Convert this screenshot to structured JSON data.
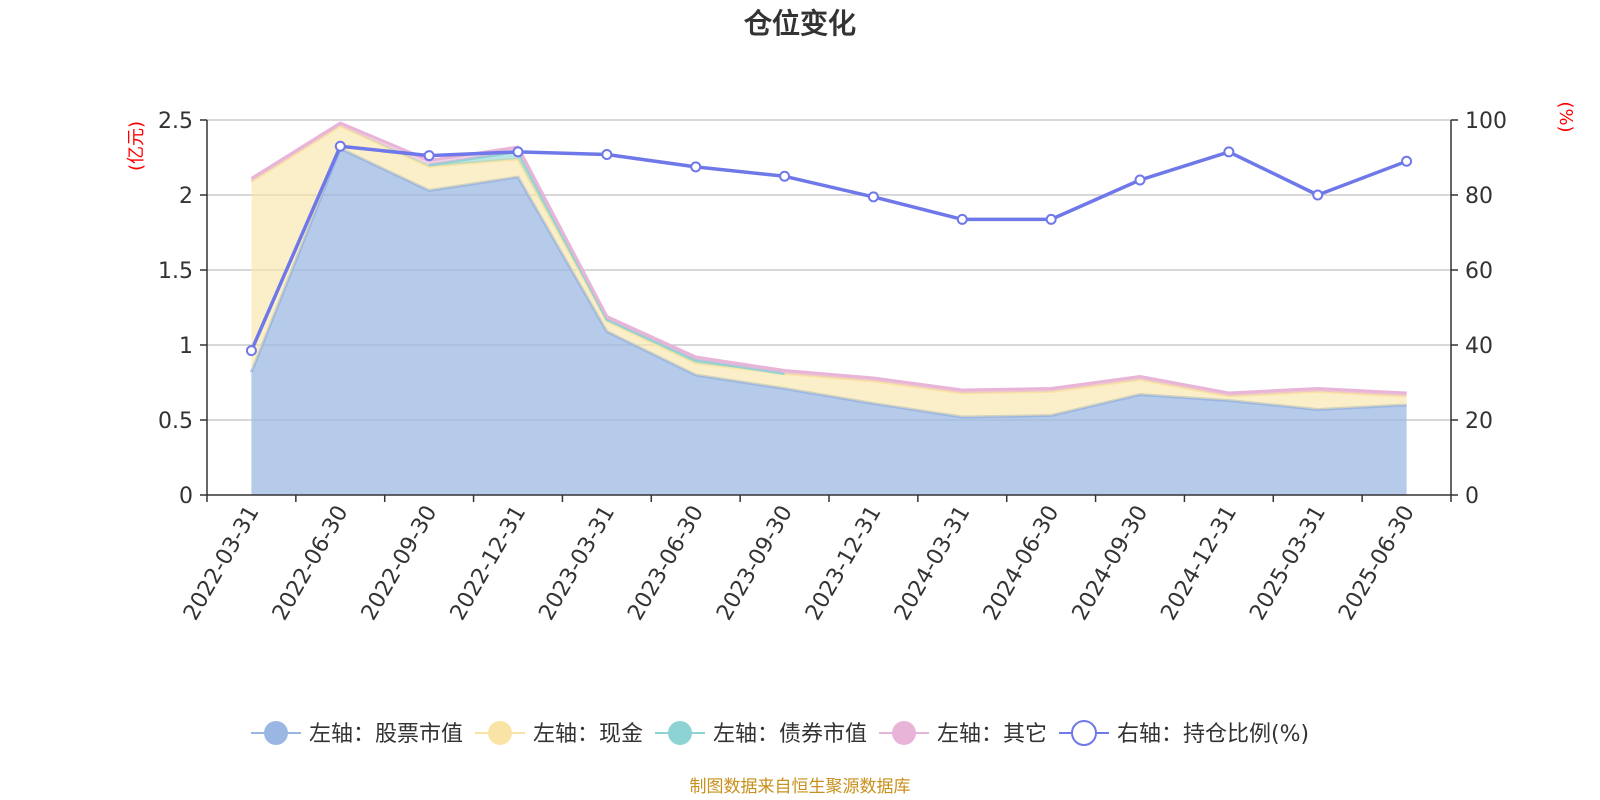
{
  "chart_data": {
    "type": "area",
    "title": "仓位变化",
    "left_unit": "(亿元)",
    "right_unit": "(%)",
    "categories": [
      "2022-03-31",
      "2022-06-30",
      "2022-09-30",
      "2022-12-31",
      "2023-03-31",
      "2023-06-30",
      "2023-09-30",
      "2023-12-31",
      "2024-03-31",
      "2024-06-30",
      "2024-09-30",
      "2024-12-31",
      "2025-03-31",
      "2025-06-30"
    ],
    "left_axis": {
      "min": 0,
      "max": 2.5,
      "ticks": [
        "0",
        "0.5",
        "1",
        "1.5",
        "2",
        "2.5"
      ]
    },
    "right_axis": {
      "min": 0,
      "max": 100,
      "ticks": [
        "0",
        "20",
        "40",
        "60",
        "80",
        "100"
      ]
    },
    "grid": true,
    "stacked": true,
    "legend_position": "bottom",
    "series": [
      {
        "name": "左轴：股票市值",
        "axis": "left",
        "kind": "area",
        "color": "#9ab6e2",
        "values": [
          0.82,
          2.31,
          2.03,
          2.12,
          1.09,
          0.8,
          0.71,
          0.61,
          0.52,
          0.53,
          0.67,
          0.63,
          0.57,
          0.6
        ]
      },
      {
        "name": "左轴：现金",
        "axis": "left",
        "kind": "area",
        "color": "#f9e4a6",
        "values": [
          1.27,
          0.15,
          0.16,
          0.12,
          0.07,
          0.08,
          0.1,
          0.15,
          0.16,
          0.16,
          0.1,
          0.03,
          0.12,
          0.06
        ]
      },
      {
        "name": "左轴：债券市值",
        "axis": "left",
        "kind": "area",
        "color": "#8ed3d3",
        "values": [
          0,
          0,
          0.01,
          0.05,
          0.01,
          0.02,
          0,
          0,
          0,
          0,
          0,
          0,
          0,
          0
        ]
      },
      {
        "name": "左轴：其它",
        "axis": "left",
        "kind": "area",
        "color": "#e8b4d8",
        "values": [
          0.02,
          0.02,
          0.03,
          0.03,
          0.02,
          0.02,
          0.02,
          0.02,
          0.02,
          0.02,
          0.02,
          0.02,
          0.02,
          0.02
        ]
      },
      {
        "name": "右轴：持仓比例(%)",
        "axis": "right",
        "kind": "line",
        "color": "#6f78e8",
        "values": [
          38.5,
          93.0,
          90.5,
          91.5,
          90.8,
          87.5,
          85.0,
          79.5,
          73.5,
          73.5,
          84.0,
          91.5,
          80.0,
          89.0
        ]
      }
    ]
  },
  "footer": "制图数据来自恒生聚源数据库"
}
